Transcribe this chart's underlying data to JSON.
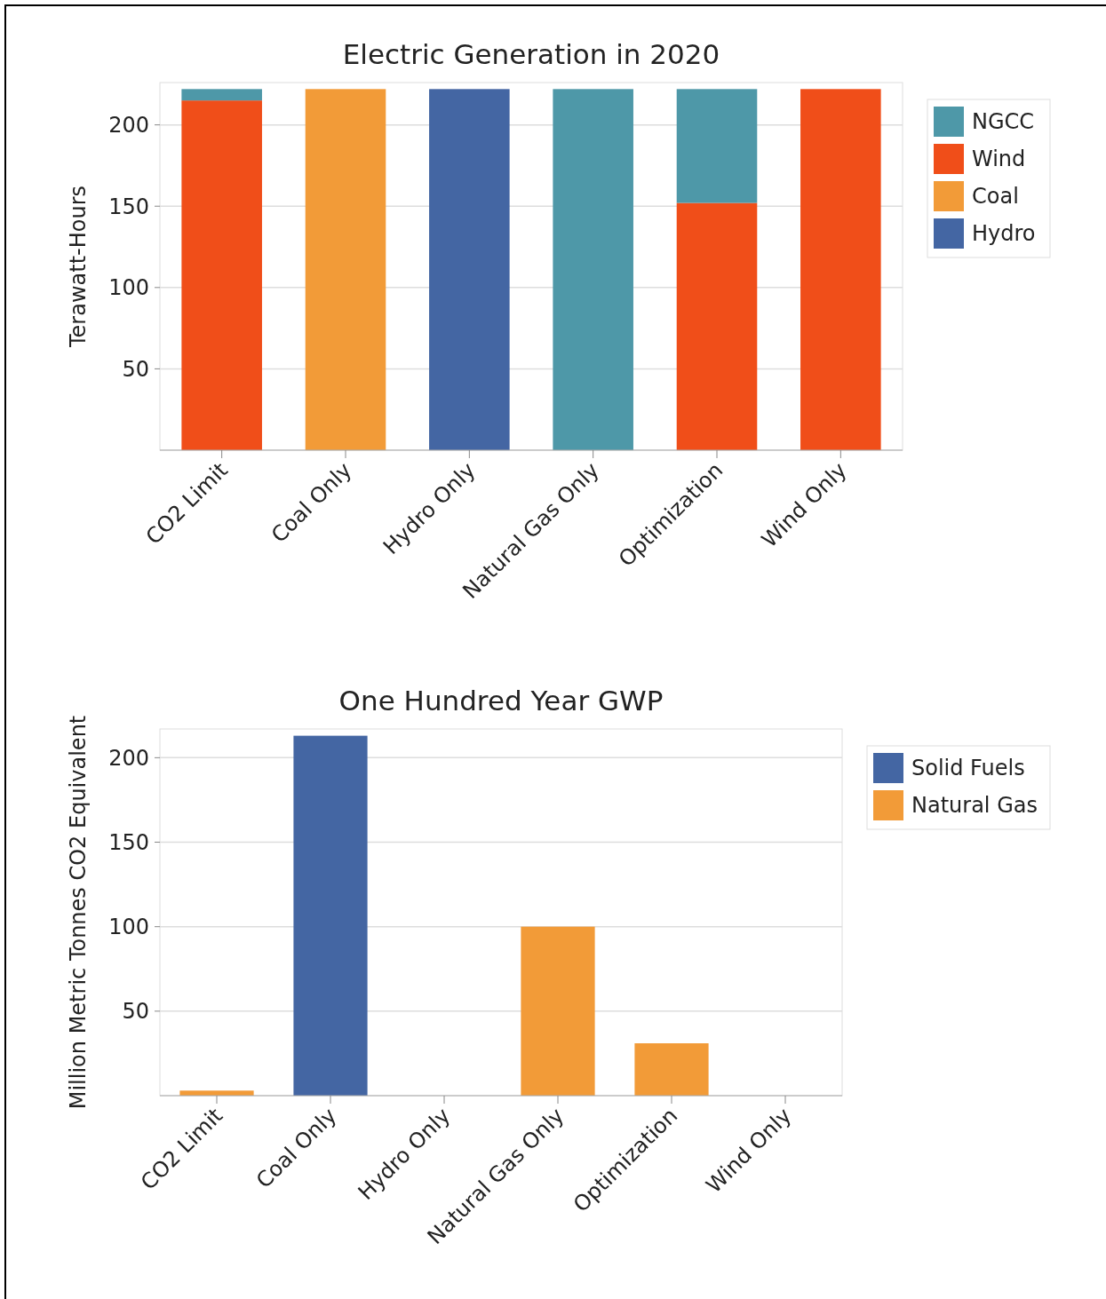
{
  "chart_data": [
    {
      "type": "bar",
      "title": "Electric Generation in 2020",
      "ylabel": "Terawatt-Hours",
      "categories": [
        "CO2 Limit",
        "Coal Only",
        "Hydro Only",
        "Natural Gas Only",
        "Optimization",
        "Wind Only"
      ],
      "stacked": true,
      "ylim": [
        0,
        226
      ],
      "yticks": [
        50,
        100,
        150,
        200
      ],
      "grid": "y",
      "legend": "top right",
      "series": [
        {
          "name": "Hydro",
          "color": "#4466a3",
          "values": [
            0,
            0,
            222,
            0,
            0,
            0
          ]
        },
        {
          "name": "Coal",
          "color": "#f29b38",
          "values": [
            0,
            222,
            0,
            0,
            0,
            0
          ]
        },
        {
          "name": "Wind",
          "color": "#f04e19",
          "values": [
            215,
            0,
            0,
            0,
            152,
            222
          ]
        },
        {
          "name": "NGCC",
          "color": "#4e98a8",
          "values": [
            7,
            0,
            0,
            222,
            70,
            0
          ]
        }
      ]
    },
    {
      "type": "bar",
      "title": "One Hundred Year GWP",
      "ylabel": "Million Metric Tonnes CO2 Equivalent",
      "categories": [
        "CO2 Limit",
        "Coal Only",
        "Hydro Only",
        "Natural Gas Only",
        "Optimization",
        "Wind Only"
      ],
      "stacked": true,
      "ylim": [
        0,
        217
      ],
      "yticks": [
        50,
        100,
        150,
        200
      ],
      "grid": "y",
      "legend": "top right",
      "series": [
        {
          "name": "Natural Gas",
          "color": "#f29b38",
          "values": [
            3,
            0,
            0,
            100,
            31,
            0
          ]
        },
        {
          "name": "Solid Fuels",
          "color": "#4466a3",
          "values": [
            0,
            213,
            0,
            0,
            0,
            0
          ]
        }
      ]
    }
  ]
}
